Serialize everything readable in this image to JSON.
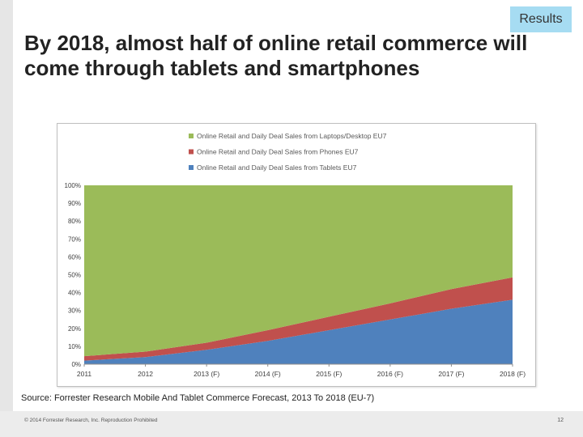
{
  "badge": "Results",
  "headline": "By 2018, almost half of online retail commerce will come through tablets and smartphones",
  "source": "Source: Forrester Research Mobile And Tablet Commerce Forecast, 2013 To 2018 (EU-7)",
  "copyright": "© 2014 Forrester Research, Inc. Reproduction Prohibited",
  "page_number": "12",
  "chart_data": {
    "type": "area",
    "stacked": true,
    "x": [
      "2011",
      "2012",
      "2013 (F)",
      "2014 (F)",
      "2015 (F)",
      "2016 (F)",
      "2017 (F)",
      "2018 (F)"
    ],
    "series": [
      {
        "name": "Online Retail and Daily Deal Sales from Tablets EU7",
        "color": "#4f81bd",
        "values": [
          2,
          4,
          8,
          13,
          19,
          25,
          31,
          36
        ]
      },
      {
        "name": "Online Retail and Daily Deal Sales from Phones EU7",
        "color": "#c0504d",
        "values": [
          2.5,
          3,
          4,
          6,
          7.5,
          9,
          11,
          12.5
        ]
      },
      {
        "name": "Online Retail and Daily Deal Sales from Laptops/Desktop EU7",
        "color": "#9bbb59",
        "values": [
          95.5,
          93,
          88,
          81,
          73.5,
          66,
          58,
          51.5
        ]
      }
    ],
    "legend_order": [
      "Online Retail and Daily Deal Sales from Laptops/Desktop EU7",
      "Online Retail and Daily Deal Sales from Phones EU7",
      "Online Retail and Daily Deal Sales from Tablets EU7"
    ],
    "y_ticks": [
      "0%",
      "10%",
      "20%",
      "30%",
      "40%",
      "50%",
      "60%",
      "70%",
      "80%",
      "90%",
      "100%"
    ],
    "ylim": [
      0,
      100
    ],
    "legend_position": "top",
    "grid": false
  }
}
